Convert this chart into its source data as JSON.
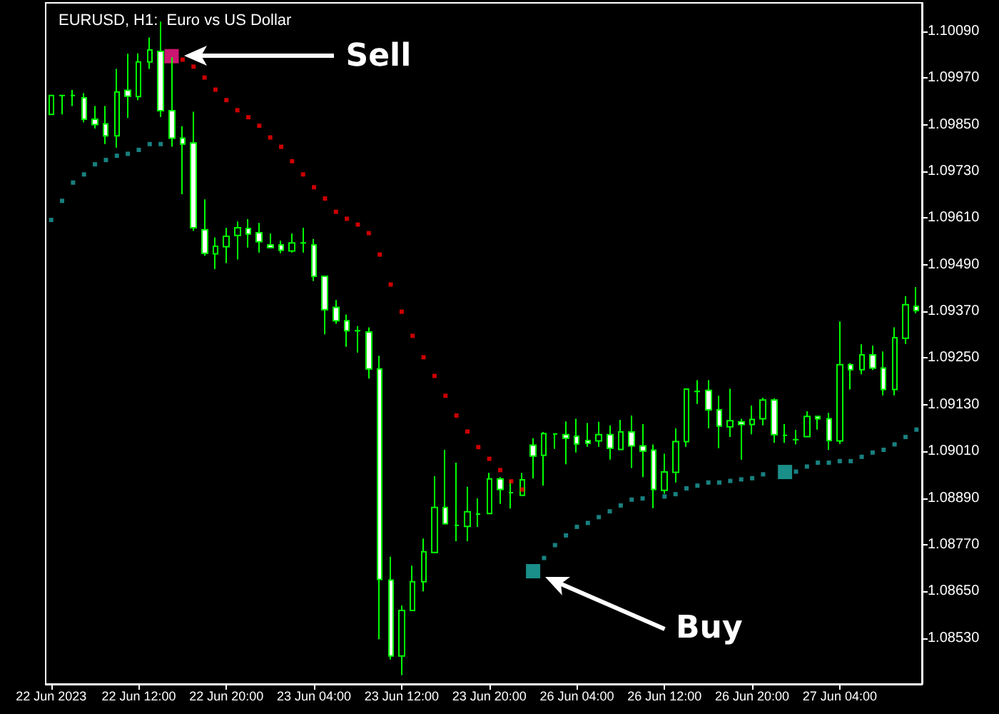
{
  "chart_data": {
    "type": "candlestick",
    "title": "EURUSD, H1:  Euro vs US Dollar",
    "color": "#00ff00",
    "marker": "square",
    "categories": [
      "22 Jun 2023",
      null,
      null,
      null,
      null,
      null,
      null,
      null,
      "22 Jun 12:00",
      null,
      null,
      null,
      null,
      null,
      null,
      null,
      "22 Jun 20:00",
      null,
      null,
      null,
      null,
      null,
      null,
      null,
      "23 Jun 04:00",
      null,
      null,
      null,
      null,
      null,
      null,
      null,
      "23 Jun 12:00",
      null,
      null,
      null,
      null,
      null,
      null,
      null,
      "23 Jun 20:00",
      null,
      null,
      null,
      null,
      null,
      null,
      null,
      "26 Jun 04:00",
      null,
      null,
      null,
      null,
      null,
      null,
      null,
      "26 Jun 12:00",
      null,
      null,
      null,
      null,
      null,
      null,
      null,
      "26 Jun 20:00",
      null,
      null,
      null,
      null,
      null,
      null,
      null,
      "27 Jun 04:00",
      null,
      null,
      null,
      null,
      null,
      null,
      null
    ],
    "ohlc": [
      [
        1.09876,
        1.09925,
        1.09876,
        1.09925
      ],
      [
        1.09925,
        1.09925,
        1.09876,
        1.09925
      ],
      [
        1.09925,
        1.09939,
        1.09898,
        1.09925
      ],
      [
        1.09919,
        1.09931,
        1.09856,
        1.09864
      ],
      [
        1.09864,
        1.09898,
        1.0984,
        1.0985
      ],
      [
        1.09852,
        1.09898,
        1.098,
        1.09821
      ],
      [
        1.09821,
        1.09993,
        1.09791,
        1.09934
      ],
      [
        1.09938,
        1.10032,
        1.09867,
        1.09923
      ],
      [
        1.09922,
        1.10033,
        1.09913,
        1.10011
      ],
      [
        1.10011,
        1.10074,
        1.09993,
        1.10042
      ],
      [
        1.10038,
        1.10115,
        1.0987,
        1.09886
      ],
      [
        1.09886,
        1.10023,
        1.09793,
        1.09815
      ],
      [
        1.09815,
        1.09846,
        1.09671,
        1.098
      ],
      [
        1.09803,
        1.09883,
        1.09577,
        1.09585
      ],
      [
        1.0958,
        1.09658,
        1.09513,
        1.09519
      ],
      [
        1.09518,
        1.0956,
        1.09479,
        1.09537
      ],
      [
        1.09536,
        1.09585,
        1.09494,
        1.09563
      ],
      [
        1.09565,
        1.09601,
        1.09503,
        1.09585
      ],
      [
        1.09583,
        1.09607,
        1.09534,
        1.09569
      ],
      [
        1.09572,
        1.09597,
        1.09521,
        1.09549
      ],
      [
        1.09541,
        1.0957,
        1.09534,
        1.09534
      ],
      [
        1.09541,
        1.09552,
        1.09519,
        1.09527
      ],
      [
        1.09525,
        1.0957,
        1.09521,
        1.09546
      ],
      [
        1.09546,
        1.09585,
        1.09521,
        1.09546
      ],
      [
        1.09541,
        1.09556,
        1.09448,
        1.0946
      ],
      [
        1.0946,
        1.0946,
        1.09311,
        1.09374
      ],
      [
        1.0938,
        1.09399,
        1.09338,
        1.09346
      ],
      [
        1.09346,
        1.09362,
        1.09279,
        1.0932
      ],
      [
        1.0932,
        1.09332,
        1.09264,
        1.0932
      ],
      [
        1.09317,
        1.09329,
        1.09197,
        1.09222
      ],
      [
        1.09222,
        1.09256,
        1.08527,
        1.08681
      ],
      [
        1.08679,
        1.08739,
        1.08475,
        1.08484
      ],
      [
        1.08484,
        1.08614,
        1.08435,
        1.08601
      ],
      [
        1.08601,
        1.08716,
        1.08601,
        1.08675
      ],
      [
        1.08675,
        1.08786,
        1.0865,
        1.08752
      ],
      [
        1.0875,
        1.08946,
        1.0875,
        1.08866
      ],
      [
        1.08866,
        1.09014,
        1.08824,
        1.08824
      ],
      [
        1.0882,
        1.08981,
        1.08779,
        1.0882
      ],
      [
        1.08817,
        1.08919,
        1.08779,
        1.08855
      ],
      [
        1.08849,
        1.08889,
        1.08816,
        1.08849
      ],
      [
        1.0885,
        1.08955,
        1.0885,
        1.08939
      ],
      [
        1.08939,
        1.08944,
        1.08875,
        1.08912
      ],
      [
        1.08904,
        1.08937,
        1.08863,
        1.08904
      ],
      [
        1.08897,
        1.08955,
        1.08895,
        1.08937
      ],
      [
        1.09026,
        1.09044,
        1.0894,
        1.08998
      ],
      [
        1.09,
        1.0906,
        1.08922,
        1.09056
      ],
      [
        1.09055,
        1.09055,
        1.09017,
        1.09055
      ],
      [
        1.09053,
        1.09087,
        1.08977,
        1.09044
      ],
      [
        1.09049,
        1.09094,
        1.09007,
        1.09029
      ],
      [
        1.09038,
        1.09083,
        1.09022,
        1.09031
      ],
      [
        1.09037,
        1.09086,
        1.09022,
        1.09053
      ],
      [
        1.09053,
        1.09077,
        1.08989,
        1.09018
      ],
      [
        1.09015,
        1.09091,
        1.09015,
        1.0906
      ],
      [
        1.0906,
        1.09102,
        1.08967,
        1.09024
      ],
      [
        1.09024,
        1.0908,
        1.08944,
        1.09011
      ],
      [
        1.09013,
        1.09028,
        1.08864,
        1.08912
      ],
      [
        1.0891,
        1.09004,
        1.08901,
        1.08957
      ],
      [
        1.08956,
        1.09069,
        1.0893,
        1.09035
      ],
      [
        1.09035,
        1.0917,
        1.09022,
        1.0917
      ],
      [
        1.09164,
        1.09193,
        1.09132,
        1.09164
      ],
      [
        1.09167,
        1.09193,
        1.09069,
        1.09117
      ],
      [
        1.09117,
        1.09153,
        1.09018,
        1.09075
      ],
      [
        1.09073,
        1.09171,
        1.09047,
        1.09089
      ],
      [
        1.09086,
        1.09094,
        1.08989,
        1.09079
      ],
      [
        1.09079,
        1.09128,
        1.09054,
        1.09092
      ],
      [
        1.09094,
        1.09148,
        1.09077,
        1.09142
      ],
      [
        1.09142,
        1.09146,
        1.09032,
        1.09053
      ],
      [
        1.09051,
        1.0908,
        1.09032,
        1.09051
      ],
      [
        1.0904,
        1.09065,
        1.09028,
        1.0904
      ],
      [
        1.09048,
        1.09113,
        1.09048,
        1.091
      ],
      [
        1.091,
        1.091,
        1.09066,
        1.09094
      ],
      [
        1.09094,
        1.09109,
        1.09014,
        1.09038
      ],
      [
        1.09037,
        1.09344,
        1.09029,
        1.09233
      ],
      [
        1.09233,
        1.09237,
        1.09169,
        1.0922
      ],
      [
        1.0922,
        1.09285,
        1.09208,
        1.09258
      ],
      [
        1.09258,
        1.09282,
        1.09219,
        1.09224
      ],
      [
        1.09224,
        1.09267,
        1.09154,
        1.09169
      ],
      [
        1.09169,
        1.09329,
        1.09154,
        1.09302
      ],
      [
        1.09301,
        1.09409,
        1.09286,
        1.09387
      ],
      [
        1.09383,
        1.09432,
        1.09365,
        1.09372
      ]
    ],
    "series": [
      {
        "type": "scatter",
        "color": "#ff0000",
        "values": [
          null,
          null,
          null,
          null,
          null,
          null,
          null,
          null,
          null,
          null,
          null,
          null,
          1.10017,
          1.09999,
          1.09971,
          1.0994,
          1.09913,
          1.09887,
          1.09869,
          1.09847,
          1.09817,
          1.09793,
          1.09756,
          1.09722,
          1.09689,
          1.0966,
          1.09626,
          1.09608,
          1.09593,
          1.09571,
          1.09516,
          1.09439,
          1.09369,
          1.09307,
          1.09252,
          1.09204,
          1.09153,
          1.09102,
          1.09061,
          1.09021,
          1.08991,
          1.08962,
          1.08933,
          1.08912,
          null,
          null,
          null,
          null,
          null,
          null,
          null,
          null,
          null,
          null,
          null,
          null,
          null,
          null,
          null,
          null,
          null,
          null,
          null,
          null,
          null,
          null,
          null,
          null,
          null,
          null,
          null,
          null,
          null,
          null,
          null,
          null,
          null,
          null,
          null,
          null
        ]
      },
      {
        "type": "scatter",
        "color": "#1fa0a0",
        "values": [
          1.09605,
          1.09654,
          1.09701,
          1.09722,
          1.09748,
          1.09759,
          1.0977,
          1.09775,
          1.09785,
          1.098,
          1.098,
          null,
          null,
          null,
          null,
          null,
          null,
          null,
          null,
          null,
          null,
          null,
          null,
          null,
          null,
          null,
          null,
          null,
          null,
          null,
          null,
          null,
          null,
          null,
          null,
          null,
          null,
          null,
          null,
          null,
          null,
          null,
          null,
          null,
          null,
          1.08736,
          1.08769,
          1.08794,
          1.08816,
          1.08826,
          1.08841,
          1.08856,
          1.08871,
          1.08886,
          1.08889,
          null,
          1.08894,
          1.089,
          1.08915,
          1.08922,
          1.0893,
          1.0893,
          1.08934,
          1.08938,
          1.08941,
          1.08951,
          null,
          null,
          1.08958,
          1.08971,
          1.08981,
          1.08981,
          1.08985,
          1.08985,
          1.08996,
          1.09007,
          1.09014,
          1.09028,
          1.09047,
          1.09066
        ]
      },
      {
        "type": "scatter",
        "color": "#ff1a8c",
        "values": [
          null,
          null,
          null,
          null,
          null,
          null,
          null,
          null,
          null,
          null,
          null,
          1.10026,
          null,
          null,
          null,
          null,
          null,
          null,
          null,
          null,
          null,
          null,
          null,
          null,
          null,
          null,
          null,
          null,
          null,
          null,
          null,
          null,
          null,
          null,
          null,
          null,
          null,
          null,
          null,
          null,
          null,
          null,
          null,
          null,
          null,
          null,
          null,
          null,
          null,
          null,
          null,
          null,
          null,
          null,
          null,
          null,
          null,
          null,
          null,
          null,
          null,
          null,
          null,
          null,
          null,
          null,
          null,
          null,
          null,
          null,
          null,
          null,
          null,
          null,
          null,
          null,
          null,
          null,
          null,
          null
        ]
      },
      {
        "type": "scatter",
        "color": "#20b2aa",
        "values": [
          null,
          null,
          null,
          null,
          null,
          null,
          null,
          null,
          null,
          null,
          null,
          null,
          null,
          null,
          null,
          null,
          null,
          null,
          null,
          null,
          null,
          null,
          null,
          null,
          null,
          null,
          null,
          null,
          null,
          null,
          null,
          null,
          null,
          null,
          null,
          null,
          null,
          null,
          null,
          null,
          null,
          null,
          null,
          null,
          1.08702,
          null,
          null,
          null,
          null,
          null,
          null,
          null,
          null,
          null,
          null,
          null,
          null,
          null,
          null,
          null,
          null,
          null,
          null,
          null,
          null,
          null,
          null,
          1.08957,
          null,
          null,
          null,
          null,
          null,
          null,
          null,
          null,
          null,
          null,
          null,
          null
        ]
      }
    ],
    "annotations": [
      "Sell",
      "Buy"
    ],
    "ylim": [
      1.08412,
      1.10163
    ],
    "yticks": [
      {
        "value": 1.0853,
        "label": "1.08530"
      },
      {
        "value": 1.0865,
        "label": "1.08650"
      },
      {
        "value": 1.0877,
        "label": "1.08770"
      },
      {
        "value": 1.0889,
        "label": "1.08890"
      },
      {
        "value": 1.0901,
        "label": "1.09010"
      },
      {
        "value": 1.0913,
        "label": "1.09130"
      },
      {
        "value": 1.0925,
        "label": "1.09250"
      },
      {
        "value": 1.0937,
        "label": "1.09370"
      },
      {
        "value": 1.0949,
        "label": "1.09490"
      },
      {
        "value": 1.0961,
        "label": "1.09610"
      },
      {
        "value": 1.0973,
        "label": "1.09730"
      },
      {
        "value": 1.0985,
        "label": "1.09850"
      },
      {
        "value": 1.0997,
        "label": "1.09970"
      },
      {
        "value": 1.1009,
        "label": "1.10090"
      }
    ]
  }
}
